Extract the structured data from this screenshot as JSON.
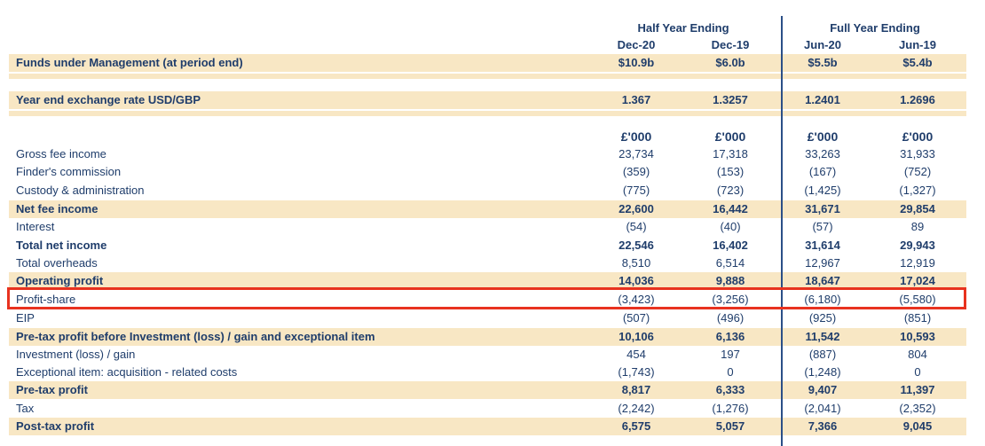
{
  "headers": {
    "half_year": "Half Year Ending",
    "full_year": "Full Year Ending",
    "periods": [
      "Dec-20",
      "Dec-19",
      "Jun-20",
      "Jun-19"
    ]
  },
  "units": [
    "£'000",
    "£'000",
    "£'000",
    "£'000"
  ],
  "rows": [
    {
      "label": "Funds under Management (at period end)",
      "values": [
        "$10.9b",
        "$6.0b",
        "$5.5b",
        "$5.4b"
      ]
    },
    {
      "label": "Year end exchange rate USD/GBP",
      "values": [
        "1.367",
        "1.3257",
        "1.2401",
        "1.2696"
      ]
    },
    {
      "label": "Gross fee income",
      "values": [
        "23,734",
        "17,318",
        "33,263",
        "31,933"
      ]
    },
    {
      "label": "Finder's commission",
      "values": [
        "(359)",
        "(153)",
        "(167)",
        "(752)"
      ]
    },
    {
      "label": "Custody & administration",
      "values": [
        "(775)",
        "(723)",
        "(1,425)",
        "(1,327)"
      ]
    },
    {
      "label": "Net fee income",
      "values": [
        "22,600",
        "16,442",
        "31,671",
        "29,854"
      ]
    },
    {
      "label": "Interest",
      "values": [
        "(54)",
        "(40)",
        "(57)",
        "89"
      ]
    },
    {
      "label": "Total net income",
      "values": [
        "22,546",
        "16,402",
        "31,614",
        "29,943"
      ]
    },
    {
      "label": "Total overheads",
      "values": [
        "8,510",
        "6,514",
        "12,967",
        "12,919"
      ]
    },
    {
      "label": "Operating profit",
      "values": [
        "14,036",
        "9,888",
        "18,647",
        "17,024"
      ]
    },
    {
      "label": "Profit-share",
      "values": [
        "(3,423)",
        "(3,256)",
        "(6,180)",
        "(5,580)"
      ]
    },
    {
      "label": "EIP",
      "values": [
        "(507)",
        "(496)",
        "(925)",
        "(851)"
      ]
    },
    {
      "label": "Pre-tax profit before Investment (loss) / gain and exceptional item",
      "values": [
        "10,106",
        "6,136",
        "11,542",
        "10,593"
      ]
    },
    {
      "label": "Investment (loss) / gain",
      "values": [
        "454",
        "197",
        "(887)",
        "804"
      ]
    },
    {
      "label": "Exceptional item: acquisition - related costs",
      "values": [
        "(1,743)",
        "0",
        "(1,248)",
        "0"
      ]
    },
    {
      "label": "Pre-tax profit",
      "values": [
        "8,817",
        "6,333",
        "9,407",
        "11,397"
      ]
    },
    {
      "label": "Tax",
      "values": [
        "(2,242)",
        "(1,276)",
        "(2,041)",
        "(2,352)"
      ]
    },
    {
      "label": "Post-tax profit",
      "values": [
        "6,575",
        "5,057",
        "7,366",
        "9,045"
      ]
    }
  ],
  "colors": {
    "text": "#1f3d6b",
    "band": "#f8e7c4",
    "highlight": "#e8321f"
  }
}
